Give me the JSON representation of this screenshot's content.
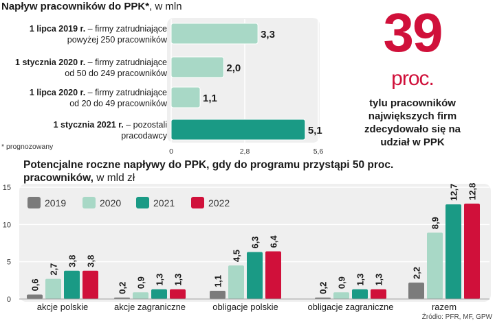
{
  "chart_data": [
    {
      "type": "bar",
      "orientation": "horizontal",
      "title_bold": "Napływ pracowników do PPK*",
      "title_rest": ", w mln",
      "categories": [
        {
          "bold": "1 lipca 2019 r.",
          "line1_rest": " – firmy zatrudniające",
          "line2": "powyżej 250 pracowników"
        },
        {
          "bold": "1 stycznia 2020 r.",
          "line1_rest": " – firmy zatrudniające",
          "line2": "od 50 do 249 pracowników"
        },
        {
          "bold": "1 lipca 2020 r.",
          "line1_rest": " – firmy zatrudniające",
          "line2": "od 20 do 49 pracowników"
        },
        {
          "bold": "1 stycznia 2021 r.",
          "line1_rest": " – pozostali",
          "line2": "pracodawcy"
        }
      ],
      "values": [
        3.3,
        2.0,
        1.1,
        5.1
      ],
      "value_labels": [
        "3,3",
        "2,0",
        "1,1",
        "5,1"
      ],
      "xlim": [
        0,
        5.6
      ],
      "xticks": [
        0,
        2.8,
        5.6
      ],
      "xtick_labels": [
        "0",
        "2,8",
        "5,6"
      ],
      "bar_colors": [
        "#a8d8c6",
        "#a8d8c6",
        "#a8d8c6",
        "#1a9a85"
      ],
      "footnote": "* prognozowany"
    },
    {
      "type": "bar",
      "orientation": "vertical",
      "grouped": true,
      "title_bold": "Potencjalne roczne napływy do PPK, gdy do programu przystąpi 50 proc. pracowników,",
      "title_rest": " w mld zł",
      "categories": [
        "akcje polskie",
        "akcje zagraniczne",
        "obligacje polskie",
        "obligacje zagraniczne",
        "razem"
      ],
      "series": [
        {
          "name": "2019",
          "color": "#7b7b7b",
          "values": [
            0.6,
            0.2,
            1.1,
            0.2,
            2.2
          ],
          "labels": [
            "0,6",
            "0,2",
            "1,1",
            "0,2",
            "2,2"
          ]
        },
        {
          "name": "2020",
          "color": "#a8d8c6",
          "values": [
            2.7,
            0.9,
            4.5,
            0.9,
            8.9
          ],
          "labels": [
            "2,7",
            "0,9",
            "4,5",
            "0,9",
            "8,9"
          ]
        },
        {
          "name": "2021",
          "color": "#1a9a85",
          "values": [
            3.8,
            1.3,
            6.3,
            1.3,
            12.7
          ],
          "labels": [
            "3,8",
            "1,3",
            "6,3",
            "1,3",
            "12,7"
          ]
        },
        {
          "name": "2022",
          "color": "#d0103a",
          "values": [
            3.8,
            1.3,
            6.4,
            1.3,
            12.8
          ],
          "labels": [
            "3,8",
            "1,3",
            "6,4",
            "1,3",
            "12,8"
          ]
        }
      ],
      "ylim": [
        0,
        15
      ],
      "yticks": [
        0,
        5,
        10,
        15
      ],
      "ytick_labels": [
        "0",
        "5",
        "10",
        "15"
      ],
      "legend_position": "top-left"
    }
  ],
  "highlight": {
    "number": "39",
    "unit": "proc.",
    "description": "tylu pracowników największych firm zdecydowało się na udział w PPK"
  },
  "source": "Źródło: PFR, MF, GPW"
}
